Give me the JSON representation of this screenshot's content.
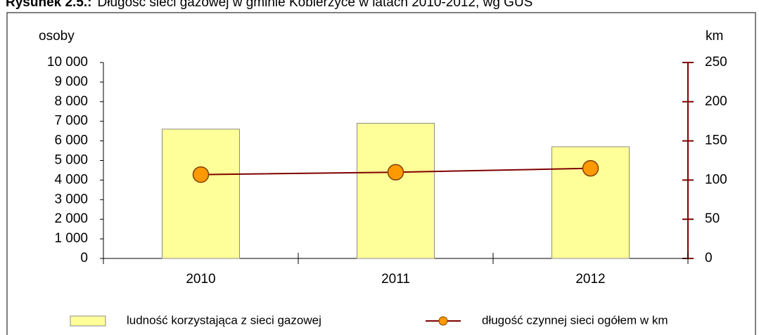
{
  "chart_data": {
    "type": "bar_line",
    "title_label": "Rysunek 2.5.:",
    "title": "Długość sieci gazowej w gminie Kobierzyce w latach 2010-2012, wg GUS",
    "ylabel": "osoby",
    "y2label": "km",
    "categories": [
      "2010",
      "2011",
      "2012"
    ],
    "series": [
      {
        "name": "ludność korzystająca z sieci gazowej",
        "type": "bar",
        "color": "#ffff99",
        "values": [
          6600,
          6900,
          5700
        ]
      },
      {
        "name": "długość czynnej sieci ogółem w km",
        "type": "line",
        "axis": "y2",
        "color": "#800000",
        "marker_color": "#ff9900",
        "values": [
          107,
          110,
          115
        ]
      }
    ],
    "ylim": [
      0,
      10000
    ],
    "yticks": [
      0,
      {
        "value": 1000,
        "label": "1 000"
      },
      {
        "value": 2000,
        "label": "2 000"
      },
      {
        "value": 3000,
        "label": "3 000"
      },
      {
        "value": 4000,
        "label": "4 000"
      },
      {
        "value": 5000,
        "label": "5 000"
      },
      {
        "value": 6000,
        "label": "6 000"
      },
      {
        "value": 7000,
        "label": "7 000"
      },
      {
        "value": 8000,
        "label": "8 000"
      },
      {
        "value": 9000,
        "label": "9 000"
      },
      {
        "value": 10000,
        "label": "10 000"
      }
    ],
    "y2lim": [
      0,
      250
    ],
    "y2ticks": [
      0,
      50,
      100,
      150,
      200,
      250
    ],
    "annotations": [
      "`"
    ],
    "legend": "bottom"
  }
}
